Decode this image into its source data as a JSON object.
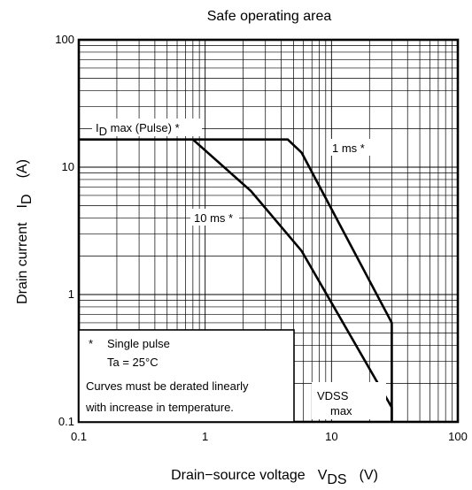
{
  "chart_data": {
    "type": "line",
    "title": "Safe operating area",
    "xlabel": "Drain−source voltage",
    "xlabel_symbol": "V",
    "xlabel_sub": "DS",
    "xlabel_unit": "(V)",
    "ylabel": "Drain current",
    "ylabel_symbol": "I",
    "ylabel_sub": "D",
    "ylabel_unit": "(A)",
    "x_scale": "log",
    "y_scale": "log",
    "xlim": [
      0.1,
      100
    ],
    "ylim": [
      0.1,
      100
    ],
    "x_ticks": [
      0.1,
      1,
      10,
      100
    ],
    "x_tick_labels": [
      "0.1",
      "1",
      "10",
      "100"
    ],
    "y_ticks": [
      0.1,
      1,
      10,
      100
    ],
    "y_tick_labels": [
      "0.1",
      "1",
      "10",
      "100"
    ],
    "grid": true,
    "series": [
      {
        "name": "1 ms *",
        "points": [
          [
            0.1,
            16.5
          ],
          [
            4.5,
            16.5
          ],
          [
            5.8,
            13
          ],
          [
            30,
            0.6
          ],
          [
            30,
            0.1
          ]
        ]
      },
      {
        "name": "10 ms *",
        "points": [
          [
            0.8,
            16.5
          ],
          [
            2.3,
            6.5
          ],
          [
            5.8,
            2.2
          ],
          [
            30,
            0.13
          ],
          [
            30,
            0.1
          ]
        ]
      }
    ],
    "annotations": {
      "id_max_pre": "I",
      "id_max_sub": "D",
      "id_max_post": " max (Pulse) *",
      "one_ms": "1 ms *",
      "ten_ms": "10 ms *",
      "vdss_pre": "V",
      "vdss_sub": "DSS",
      "vdss_max": "max"
    },
    "note": {
      "line1_star": "*",
      "line1": "Single pulse",
      "line2": "Ta = 25°C",
      "line3": "Curves must be derated linearly",
      "line4": "with increase in temperature."
    }
  }
}
